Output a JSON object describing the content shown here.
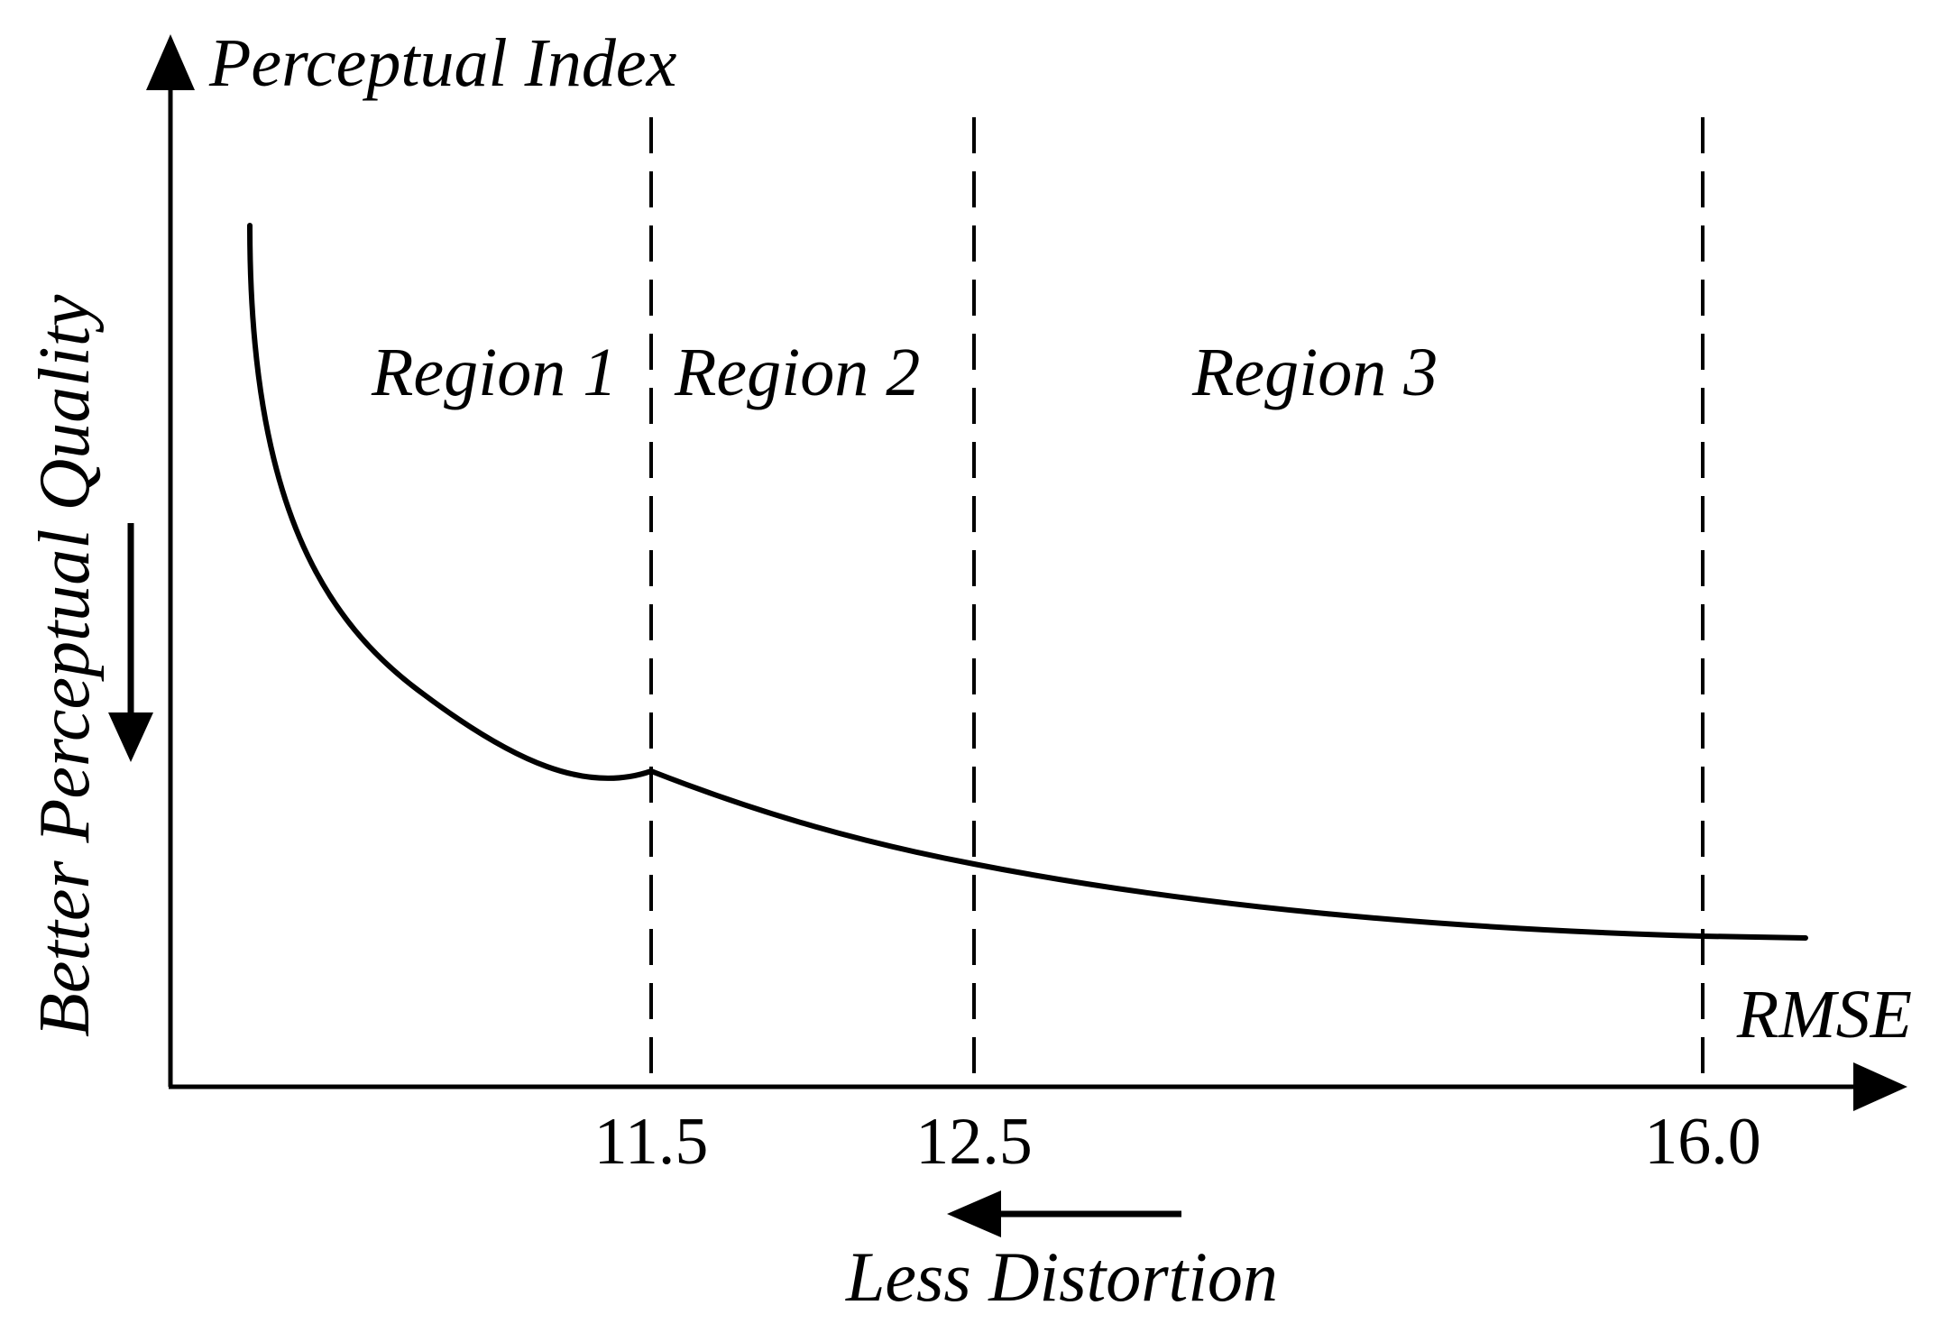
{
  "figure": {
    "y_axis_label": "Perceptual Index",
    "x_axis_label": "RMSE",
    "left_annotation": "Better Perceptual Quality",
    "bottom_annotation": "Less Distortion",
    "regions": [
      {
        "label": "Region 1"
      },
      {
        "label": "Region 2"
      },
      {
        "label": "Region 3"
      }
    ],
    "thresholds": [
      {
        "label": "11.5"
      },
      {
        "label": "12.5"
      },
      {
        "label": "16.0"
      }
    ],
    "colors": {
      "ink": "#000000",
      "background": "#ffffff"
    }
  }
}
